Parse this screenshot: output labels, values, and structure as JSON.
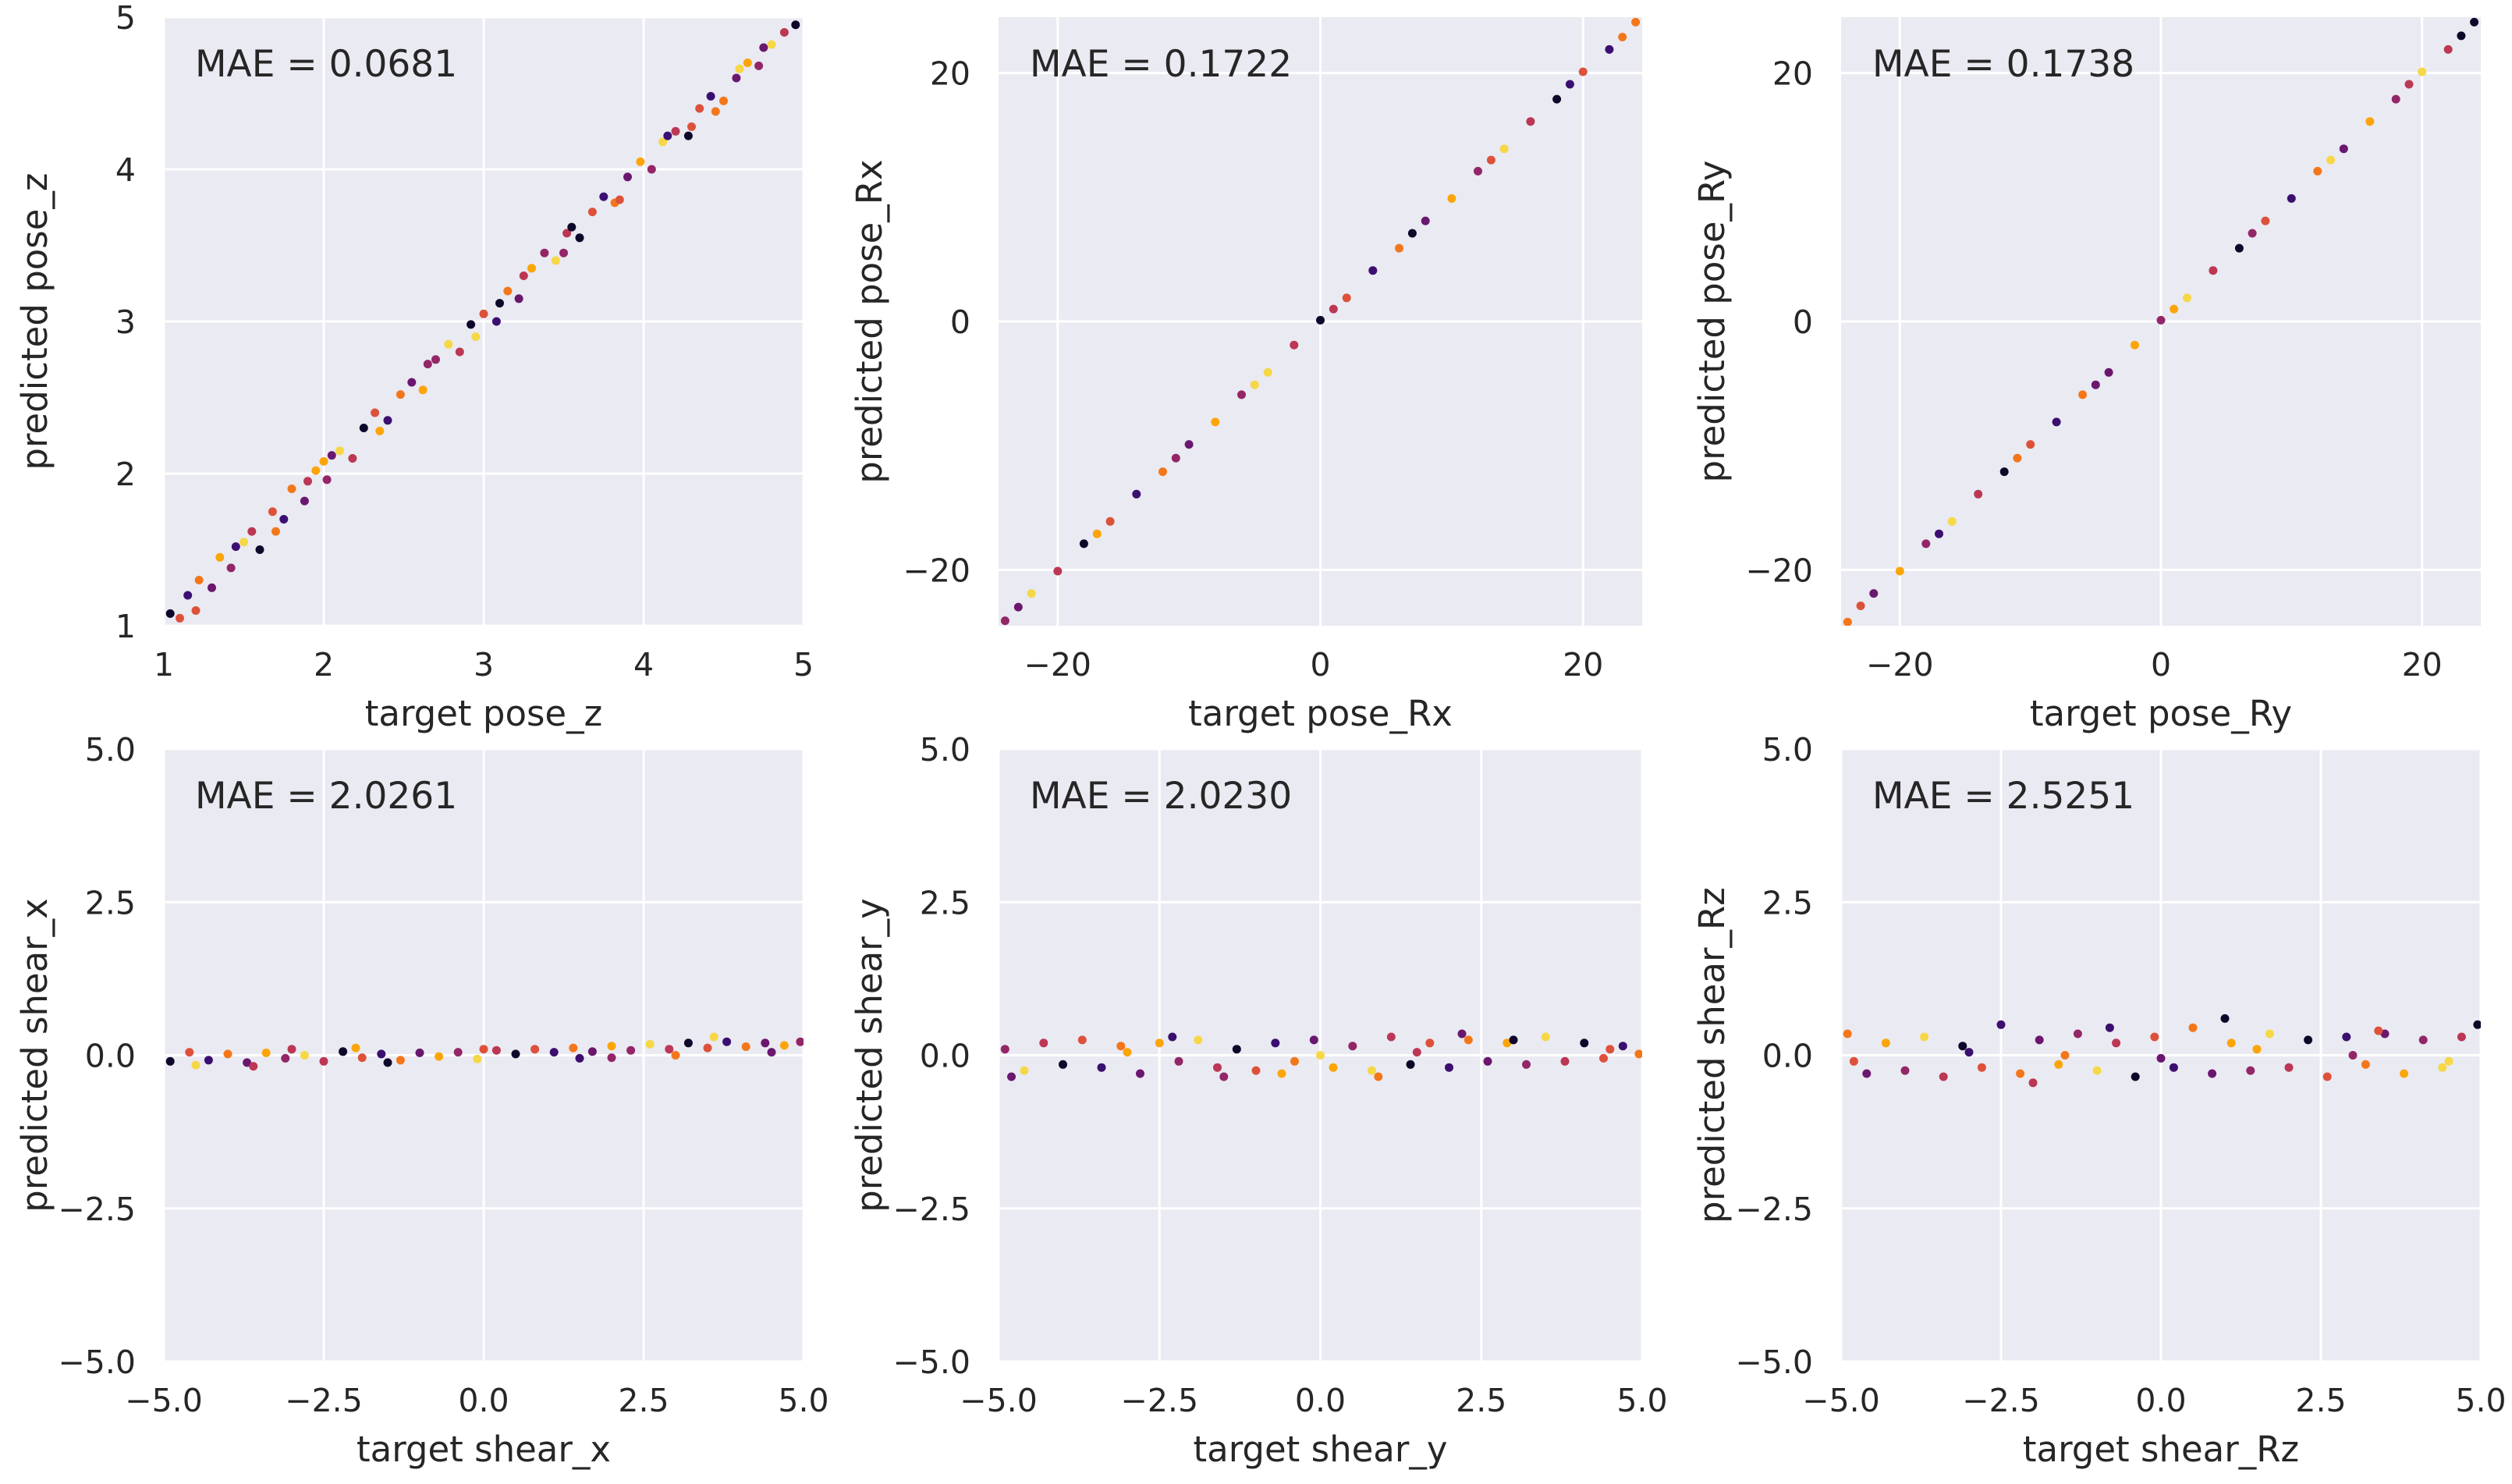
{
  "colors": {
    "axes_background": "#EAEAF2",
    "grid": "#FFFFFF",
    "palette": [
      "#0D0829",
      "#3B0F70",
      "#6A176E",
      "#932667",
      "#BC3754",
      "#DD513A",
      "#F3771A",
      "#FCA50A",
      "#F6D746"
    ]
  },
  "chart_data": [
    {
      "type": "scatter",
      "xlabel": "target pose_z",
      "ylabel": "predicted pose_z",
      "annotation": "MAE = 0.0681",
      "xlim": [
        1,
        5
      ],
      "ylim": [
        1,
        5
      ],
      "xticks": [
        1,
        2,
        3,
        4,
        5
      ],
      "xtick_labels": [
        "1",
        "2",
        "3",
        "4",
        "5"
      ],
      "yticks": [
        1,
        2,
        3,
        4,
        5
      ],
      "ytick_labels": [
        "1",
        "2",
        "3",
        "4",
        "5"
      ],
      "grid": true,
      "points": [
        [
          1.04,
          1.08
        ],
        [
          1.1,
          1.05
        ],
        [
          1.15,
          1.2
        ],
        [
          1.22,
          1.3
        ],
        [
          1.3,
          1.25
        ],
        [
          1.35,
          1.45
        ],
        [
          1.42,
          1.38
        ],
        [
          1.5,
          1.55
        ],
        [
          1.55,
          1.62
        ],
        [
          1.6,
          1.5
        ],
        [
          1.68,
          1.75
        ],
        [
          1.75,
          1.7
        ],
        [
          1.8,
          1.9
        ],
        [
          1.88,
          1.82
        ],
        [
          1.95,
          2.02
        ],
        [
          2.02,
          1.96
        ],
        [
          2.1,
          2.15
        ],
        [
          2.18,
          2.1
        ],
        [
          2.25,
          2.3
        ],
        [
          2.32,
          2.4
        ],
        [
          2.4,
          2.35
        ],
        [
          2.48,
          2.52
        ],
        [
          2.55,
          2.6
        ],
        [
          2.62,
          2.55
        ],
        [
          2.7,
          2.75
        ],
        [
          2.78,
          2.85
        ],
        [
          2.85,
          2.8
        ],
        [
          2.92,
          2.98
        ],
        [
          3.0,
          3.05
        ],
        [
          3.08,
          3.0
        ],
        [
          3.15,
          3.2
        ],
        [
          3.22,
          3.15
        ],
        [
          3.3,
          3.35
        ],
        [
          3.38,
          3.45
        ],
        [
          3.45,
          3.4
        ],
        [
          3.52,
          3.58
        ],
        [
          3.6,
          3.55
        ],
        [
          3.68,
          3.72
        ],
        [
          3.75,
          3.82
        ],
        [
          3.82,
          3.78
        ],
        [
          3.9,
          3.95
        ],
        [
          3.98,
          4.05
        ],
        [
          4.05,
          4.0
        ],
        [
          4.12,
          4.18
        ],
        [
          4.2,
          4.25
        ],
        [
          4.28,
          4.22
        ],
        [
          4.35,
          4.4
        ],
        [
          4.42,
          4.48
        ],
        [
          4.5,
          4.45
        ],
        [
          4.58,
          4.6
        ],
        [
          4.65,
          4.7
        ],
        [
          4.72,
          4.68
        ],
        [
          4.8,
          4.82
        ],
        [
          4.88,
          4.9
        ],
        [
          4.95,
          4.95
        ],
        [
          1.2,
          1.1
        ],
        [
          1.45,
          1.52
        ],
        [
          1.7,
          1.62
        ],
        [
          2.05,
          2.12
        ],
        [
          2.35,
          2.28
        ],
        [
          2.65,
          2.72
        ],
        [
          2.95,
          2.9
        ],
        [
          3.25,
          3.3
        ],
        [
          3.55,
          3.62
        ],
        [
          3.85,
          3.8
        ],
        [
          4.15,
          4.22
        ],
        [
          4.45,
          4.38
        ],
        [
          4.75,
          4.8
        ],
        [
          2.0,
          2.08
        ],
        [
          3.5,
          3.45
        ],
        [
          4.6,
          4.66
        ],
        [
          1.9,
          1.95
        ],
        [
          3.1,
          3.12
        ],
        [
          4.3,
          4.28
        ]
      ]
    },
    {
      "type": "scatter",
      "xlabel": "target pose_Rx",
      "ylabel": "predicted pose_Rx",
      "annotation": "MAE = 0.1722",
      "xlim": [
        -24.5,
        24.5
      ],
      "ylim": [
        -24.5,
        24.5
      ],
      "xticks": [
        -20,
        0,
        20
      ],
      "xtick_labels": [
        "−20",
        "0",
        "20"
      ],
      "yticks": [
        -20,
        0,
        20
      ],
      "ytick_labels": [
        "−20",
        "0",
        "20"
      ],
      "grid": true,
      "points": [
        [
          -24,
          -24.1
        ],
        [
          -22,
          -21.9
        ],
        [
          -20,
          -20.1
        ],
        [
          -18,
          -17.9
        ],
        [
          -16,
          -16.1
        ],
        [
          -14,
          -13.9
        ],
        [
          -12,
          -12.1
        ],
        [
          -10,
          -9.9
        ],
        [
          -8,
          -8.1
        ],
        [
          -6,
          -5.9
        ],
        [
          -4,
          -4.1
        ],
        [
          -2,
          -1.9
        ],
        [
          0,
          0.1
        ],
        [
          2,
          1.9
        ],
        [
          4,
          4.1
        ],
        [
          6,
          5.9
        ],
        [
          8,
          8.1
        ],
        [
          10,
          9.9
        ],
        [
          12,
          12.1
        ],
        [
          14,
          13.9
        ],
        [
          16,
          16.1
        ],
        [
          18,
          17.9
        ],
        [
          20,
          20.1
        ],
        [
          22,
          21.9
        ],
        [
          24,
          24.1
        ],
        [
          -23,
          -23
        ],
        [
          -17,
          -17.1
        ],
        [
          -11,
          -11
        ],
        [
          -5,
          -5.1
        ],
        [
          1,
          1
        ],
        [
          7,
          7.1
        ],
        [
          13,
          13
        ],
        [
          19,
          19.1
        ],
        [
          23,
          22.9
        ]
      ]
    },
    {
      "type": "scatter",
      "xlabel": "target pose_Ry",
      "ylabel": "predicted pose_Ry",
      "annotation": "MAE = 0.1738",
      "xlim": [
        -24.5,
        24.5
      ],
      "ylim": [
        -24.5,
        24.5
      ],
      "xticks": [
        -20,
        0,
        20
      ],
      "xtick_labels": [
        "−20",
        "0",
        "20"
      ],
      "yticks": [
        -20,
        0,
        20
      ],
      "ytick_labels": [
        "−20",
        "0",
        "20"
      ],
      "grid": true,
      "points": [
        [
          -24,
          -24.2
        ],
        [
          -22,
          -21.9
        ],
        [
          -20,
          -20.1
        ],
        [
          -18,
          -17.9
        ],
        [
          -16,
          -16.1
        ],
        [
          -14,
          -13.9
        ],
        [
          -12,
          -12.1
        ],
        [
          -10,
          -9.9
        ],
        [
          -8,
          -8.1
        ],
        [
          -6,
          -5.9
        ],
        [
          -4,
          -4.1
        ],
        [
          -2,
          -1.9
        ],
        [
          0,
          0.1
        ],
        [
          2,
          1.9
        ],
        [
          4,
          4.1
        ],
        [
          6,
          5.9
        ],
        [
          8,
          8.1
        ],
        [
          10,
          9.9
        ],
        [
          12,
          12.1
        ],
        [
          14,
          13.9
        ],
        [
          16,
          16.1
        ],
        [
          18,
          17.9
        ],
        [
          20,
          20.1
        ],
        [
          22,
          21.9
        ],
        [
          24,
          24.1
        ],
        [
          -23,
          -22.9
        ],
        [
          -17,
          -17.1
        ],
        [
          -11,
          -11
        ],
        [
          -5,
          -5.1
        ],
        [
          1,
          1
        ],
        [
          7,
          7.1
        ],
        [
          13,
          13
        ],
        [
          19,
          19.1
        ],
        [
          23,
          23
        ]
      ]
    },
    {
      "type": "scatter",
      "xlabel": "target shear_x",
      "ylabel": "predicted shear_x",
      "annotation": "MAE = 2.0261",
      "xlim": [
        -5,
        5
      ],
      "ylim": [
        -5,
        5
      ],
      "xticks": [
        -5,
        -2.5,
        0,
        2.5,
        5
      ],
      "xtick_labels": [
        "−5.0",
        "−2.5",
        "0.0",
        "2.5",
        "5.0"
      ],
      "yticks": [
        -5,
        -2.5,
        0,
        2.5,
        5
      ],
      "ytick_labels": [
        "−5.0",
        "−2.5",
        "0.0",
        "2.5",
        "5.0"
      ],
      "grid": true,
      "points": [
        [
          -4.9,
          -0.1
        ],
        [
          -4.6,
          0.05
        ],
        [
          -4.3,
          -0.08
        ],
        [
          -4.0,
          0.02
        ],
        [
          -3.7,
          -0.12
        ],
        [
          -3.4,
          0.04
        ],
        [
          -3.1,
          -0.05
        ],
        [
          -2.8,
          0.0
        ],
        [
          -2.5,
          -0.1
        ],
        [
          -2.2,
          0.06
        ],
        [
          -1.9,
          -0.04
        ],
        [
          -1.6,
          0.02
        ],
        [
          -1.3,
          -0.08
        ],
        [
          -1.0,
          0.04
        ],
        [
          -0.7,
          -0.02
        ],
        [
          -0.4,
          0.05
        ],
        [
          -0.1,
          -0.06
        ],
        [
          0.2,
          0.08
        ],
        [
          0.5,
          0.02
        ],
        [
          0.8,
          0.1
        ],
        [
          1.1,
          0.05
        ],
        [
          1.4,
          0.12
        ],
        [
          1.7,
          0.06
        ],
        [
          2.0,
          0.15
        ],
        [
          2.3,
          0.08
        ],
        [
          2.6,
          0.18
        ],
        [
          2.9,
          0.1
        ],
        [
          3.2,
          0.2
        ],
        [
          3.5,
          0.12
        ],
        [
          3.8,
          0.22
        ],
        [
          4.1,
          0.14
        ],
        [
          4.4,
          0.2
        ],
        [
          4.7,
          0.16
        ],
        [
          4.95,
          0.22
        ],
        [
          -4.5,
          -0.16
        ],
        [
          -3.0,
          0.1
        ],
        [
          -1.5,
          -0.12
        ],
        [
          0.0,
          0.1
        ],
        [
          1.5,
          -0.05
        ],
        [
          3.0,
          0.0
        ],
        [
          4.5,
          0.05
        ],
        [
          -2.0,
          0.12
        ],
        [
          2.0,
          -0.04
        ],
        [
          3.6,
          0.3
        ],
        [
          -3.6,
          -0.18
        ]
      ]
    },
    {
      "type": "scatter",
      "xlabel": "target shear_y",
      "ylabel": "predicted shear_y",
      "annotation": "MAE = 2.0230",
      "xlim": [
        -5,
        5
      ],
      "ylim": [
        -5,
        5
      ],
      "xticks": [
        -5,
        -2.5,
        0,
        2.5,
        5
      ],
      "xtick_labels": [
        "−5.0",
        "−2.5",
        "0.0",
        "2.5",
        "5.0"
      ],
      "yticks": [
        -5,
        -2.5,
        0,
        2.5,
        5
      ],
      "ytick_labels": [
        "−5.0",
        "−2.5",
        "0.0",
        "2.5",
        "5.0"
      ],
      "grid": true,
      "points": [
        [
          -4.9,
          0.1
        ],
        [
          -4.6,
          -0.25
        ],
        [
          -4.3,
          0.2
        ],
        [
          -4.0,
          -0.15
        ],
        [
          -3.7,
          0.25
        ],
        [
          -3.4,
          -0.2
        ],
        [
          -3.1,
          0.15
        ],
        [
          -2.8,
          -0.3
        ],
        [
          -2.5,
          0.2
        ],
        [
          -2.2,
          -0.1
        ],
        [
          -1.9,
          0.25
        ],
        [
          -1.6,
          -0.2
        ],
        [
          -1.3,
          0.1
        ],
        [
          -1.0,
          -0.25
        ],
        [
          -0.7,
          0.2
        ],
        [
          -0.4,
          -0.1
        ],
        [
          -0.1,
          0.25
        ],
        [
          0.2,
          -0.2
        ],
        [
          0.5,
          0.15
        ],
        [
          0.8,
          -0.25
        ],
        [
          1.1,
          0.3
        ],
        [
          1.4,
          -0.15
        ],
        [
          1.7,
          0.2
        ],
        [
          2.0,
          -0.2
        ],
        [
          2.3,
          0.25
        ],
        [
          2.6,
          -0.1
        ],
        [
          2.9,
          0.2
        ],
        [
          3.2,
          -0.15
        ],
        [
          3.5,
          0.3
        ],
        [
          3.8,
          -0.1
        ],
        [
          4.1,
          0.2
        ],
        [
          4.4,
          -0.05
        ],
        [
          4.7,
          0.15
        ],
        [
          4.95,
          0.02
        ],
        [
          -4.8,
          -0.35
        ],
        [
          -3.0,
          0.05
        ],
        [
          -1.5,
          -0.35
        ],
        [
          0.0,
          0.0
        ],
        [
          1.5,
          0.05
        ],
        [
          3.0,
          0.25
        ],
        [
          4.5,
          0.1
        ],
        [
          -2.3,
          0.3
        ],
        [
          0.9,
          -0.35
        ],
        [
          2.2,
          0.35
        ],
        [
          -0.6,
          -0.3
        ]
      ]
    },
    {
      "type": "scatter",
      "xlabel": "target shear_Rz",
      "ylabel": "predicted shear_Rz",
      "annotation": "MAE = 2.5251",
      "xlim": [
        -5,
        5
      ],
      "ylim": [
        -5,
        5
      ],
      "xticks": [
        -5,
        -2.5,
        0,
        2.5,
        5
      ],
      "xtick_labels": [
        "−5.0",
        "−2.5",
        "0.0",
        "2.5",
        "5.0"
      ],
      "yticks": [
        -5,
        -2.5,
        0,
        2.5,
        5
      ],
      "ytick_labels": [
        "−5.0",
        "−2.5",
        "0.0",
        "2.5",
        "5.0"
      ],
      "grid": true,
      "points": [
        [
          -4.9,
          0.35
        ],
        [
          -4.6,
          -0.3
        ],
        [
          -4.3,
          0.2
        ],
        [
          -4.0,
          -0.25
        ],
        [
          -3.7,
          0.3
        ],
        [
          -3.4,
          -0.35
        ],
        [
          -3.1,
          0.15
        ],
        [
          -2.8,
          -0.2
        ],
        [
          -2.5,
          0.5
        ],
        [
          -2.2,
          -0.3
        ],
        [
          -1.9,
          0.25
        ],
        [
          -1.6,
          -0.15
        ],
        [
          -1.3,
          0.35
        ],
        [
          -1.0,
          -0.25
        ],
        [
          -0.7,
          0.2
        ],
        [
          -0.4,
          -0.35
        ],
        [
          -0.1,
          0.3
        ],
        [
          0.2,
          -0.2
        ],
        [
          0.5,
          0.45
        ],
        [
          0.8,
          -0.3
        ],
        [
          1.1,
          0.2
        ],
        [
          1.4,
          -0.25
        ],
        [
          1.7,
          0.35
        ],
        [
          2.0,
          -0.2
        ],
        [
          2.3,
          0.25
        ],
        [
          2.6,
          -0.35
        ],
        [
          2.9,
          0.3
        ],
        [
          3.2,
          -0.15
        ],
        [
          3.5,
          0.35
        ],
        [
          3.8,
          -0.3
        ],
        [
          4.1,
          0.25
        ],
        [
          4.4,
          -0.2
        ],
        [
          4.7,
          0.3
        ],
        [
          4.95,
          0.5
        ],
        [
          -4.8,
          -0.1
        ],
        [
          -3.0,
          0.05
        ],
        [
          -1.5,
          0.0
        ],
        [
          0.0,
          -0.05
        ],
        [
          1.5,
          0.1
        ],
        [
          3.0,
          0.0
        ],
        [
          4.5,
          -0.1
        ],
        [
          -2.0,
          -0.45
        ],
        [
          1.0,
          0.6
        ],
        [
          3.4,
          0.4
        ],
        [
          -0.8,
          0.45
        ]
      ]
    }
  ]
}
